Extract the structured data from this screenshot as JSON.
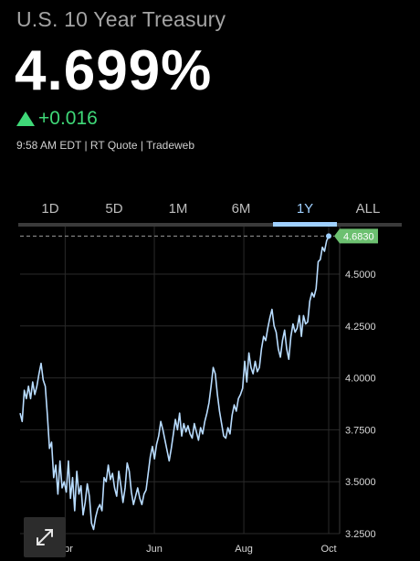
{
  "instrument": {
    "title": "U.S. 10 Year Treasury",
    "price": "4.699%",
    "change": "+0.016",
    "quote_meta": "9:58 AM EDT | RT Quote | Tradeweb"
  },
  "colors": {
    "up": "#3fd878",
    "line": "#b8dcff",
    "accent": "#9fd0ff",
    "badge": "#6cc070",
    "grid": "#2a2a2a"
  },
  "tabs": [
    {
      "label": "1D",
      "active": false
    },
    {
      "label": "5D",
      "active": false
    },
    {
      "label": "1M",
      "active": false
    },
    {
      "label": "6M",
      "active": false
    },
    {
      "label": "1Y",
      "active": true
    },
    {
      "label": "ALL",
      "active": false
    }
  ],
  "chart_data": {
    "type": "line",
    "last_value_label": "4.6830",
    "ylim": [
      3.25,
      4.75
    ],
    "yticks": [
      3.25,
      3.5,
      3.75,
      4.0,
      4.25,
      4.5
    ],
    "ytick_labels": [
      "3.2500",
      "3.5000",
      "3.7500",
      "4.0000",
      "4.2500",
      "4.5000"
    ],
    "xticks": [
      {
        "t": 0.146,
        "label": "Apr"
      },
      {
        "t": 0.435,
        "label": "Jun"
      },
      {
        "t": 0.725,
        "label": "Aug"
      },
      {
        "t": 1.0,
        "label": "Oct"
      }
    ],
    "series": [
      {
        "values": [
          3.83,
          3.79,
          3.94,
          3.9,
          3.96,
          3.9,
          3.98,
          3.92,
          3.96,
          4.02,
          4.07,
          3.99,
          3.96,
          3.82,
          3.66,
          3.69,
          3.52,
          3.58,
          3.44,
          3.6,
          3.47,
          3.5,
          3.45,
          3.6,
          3.42,
          3.52,
          3.36,
          3.55,
          3.44,
          3.48,
          3.34,
          3.4,
          3.49,
          3.43,
          3.3,
          3.27,
          3.33,
          3.37,
          3.39,
          3.36,
          3.52,
          3.5,
          3.58,
          3.51,
          3.54,
          3.47,
          3.43,
          3.55,
          3.48,
          3.4,
          3.47,
          3.59,
          3.55,
          3.45,
          3.39,
          3.43,
          3.47,
          3.42,
          3.39,
          3.44,
          3.46,
          3.54,
          3.62,
          3.67,
          3.61,
          3.68,
          3.72,
          3.79,
          3.75,
          3.7,
          3.65,
          3.6,
          3.66,
          3.73,
          3.8,
          3.75,
          3.83,
          3.72,
          3.78,
          3.74,
          3.77,
          3.73,
          3.71,
          3.78,
          3.74,
          3.7,
          3.76,
          3.73,
          3.79,
          3.83,
          3.88,
          3.96,
          4.05,
          4.02,
          3.92,
          3.84,
          3.78,
          3.72,
          3.71,
          3.76,
          3.73,
          3.82,
          3.87,
          3.84,
          3.9,
          3.92,
          3.95,
          4.08,
          3.98,
          4.12,
          4.05,
          4.02,
          4.08,
          4.03,
          4.05,
          4.14,
          4.2,
          4.18,
          4.24,
          4.29,
          4.33,
          4.25,
          4.22,
          4.14,
          4.1,
          4.18,
          4.23,
          4.14,
          4.09,
          4.2,
          4.26,
          4.22,
          4.24,
          4.3,
          4.2,
          4.3,
          4.26,
          4.27,
          4.37,
          4.41,
          4.39,
          4.43,
          4.56,
          4.57,
          4.63,
          4.61,
          4.66,
          4.683
        ]
      }
    ]
  }
}
